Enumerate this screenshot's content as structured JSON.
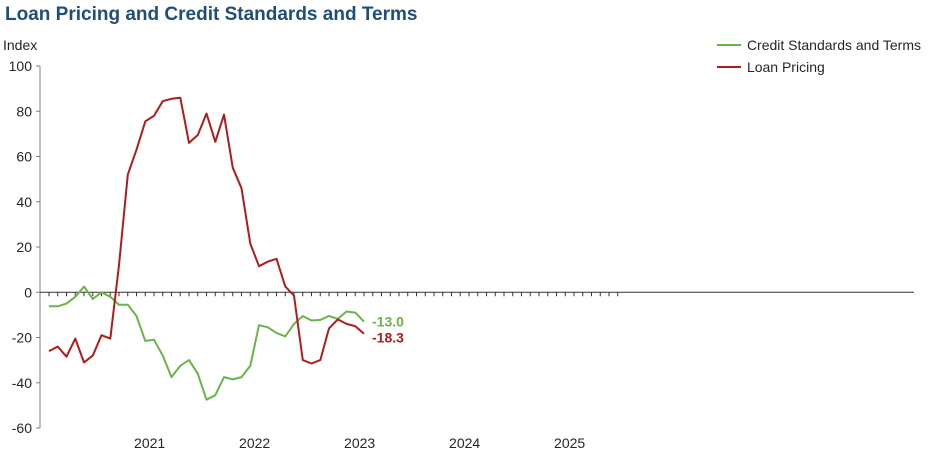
{
  "title": "Loan Pricing  and Credit Standards and Terms",
  "chart_data": {
    "type": "line",
    "title": "Loan Pricing  and Credit Standards and Terms",
    "ylabel": "Index",
    "xlabel": "",
    "ylim": [
      -60,
      100
    ],
    "yticks": [
      "100",
      "80",
      "60",
      "40",
      "20",
      "0",
      "-20",
      "-40",
      "-60"
    ],
    "xtick_labels": [
      "2021",
      "2022",
      "2023",
      "2024",
      "2025"
    ],
    "x": [
      "2020-07",
      "2020-08",
      "2020-09",
      "2020-10",
      "2020-11",
      "2020-12",
      "2021-01",
      "2021-02",
      "2021-03",
      "2021-04",
      "2021-05",
      "2021-06",
      "2021-07",
      "2021-08",
      "2021-09",
      "2021-10",
      "2021-11",
      "2021-12",
      "2022-01",
      "2022-02",
      "2022-03",
      "2022-04",
      "2022-05",
      "2022-06",
      "2022-07",
      "2022-08",
      "2022-09",
      "2022-10",
      "2022-11",
      "2022-12",
      "2023-01",
      "2023-02",
      "2023-03",
      "2023-04",
      "2023-05",
      "2023-06",
      "2023-07",
      "2023-08",
      "2023-09",
      "2023-10",
      "2023-11",
      "2023-12",
      "2024-01",
      "2024-02",
      "2024-03",
      "2024-04",
      "2024-05",
      "2024-06",
      "2024-07",
      "2024-08",
      "2024-09",
      "2024-10",
      "2024-11",
      "2024-12",
      "2025-01",
      "2025-02",
      "2025-03",
      "2025-04",
      "2025-05",
      "2025-06",
      "2025-07",
      "2025-08",
      "2025-09",
      "2025-10",
      "2025-11",
      "2025-12"
    ],
    "legend_position": "top-right",
    "grid": false,
    "series": [
      {
        "name": "Credit Standards and Terms",
        "color": "#6ab547",
        "points": [
          [
            "2020-07-01",
            -6.2
          ],
          [
            "2020-08-01",
            -6.2
          ],
          [
            "2020-09-01",
            -5
          ],
          [
            "2020-10-01",
            -2
          ],
          [
            "2020-11-01",
            2.5
          ],
          [
            "2020-12-01",
            -3
          ],
          [
            "2021-01-01",
            0
          ],
          [
            "2021-02-01",
            -2
          ],
          [
            "2021-03-01",
            -5.5
          ],
          [
            "2021-04-01",
            -5.5
          ],
          [
            "2021-05-01",
            -10.5
          ],
          [
            "2021-06-01",
            -21.5
          ],
          [
            "2021-07-01",
            -21
          ],
          [
            "2021-08-01",
            -28
          ],
          [
            "2021-09-01",
            -37.5
          ],
          [
            "2021-10-01",
            -32.5
          ],
          [
            "2021-11-01",
            -30
          ],
          [
            "2021-12-01",
            -36
          ],
          [
            "2022-01-01",
            -47.5
          ],
          [
            "2022-02-01",
            -45.5
          ],
          [
            "2022-03-01",
            -37.5
          ],
          [
            "2022-04-01",
            -38.5
          ],
          [
            "2022-05-01",
            -37.5
          ],
          [
            "2022-06-01",
            -32.5
          ],
          [
            "2022-07-01",
            -14.5
          ],
          [
            "2022-08-01",
            -15.5
          ],
          [
            "2022-09-01",
            -18
          ],
          [
            "2022-10-01",
            -19.5
          ],
          [
            "2022-11-01",
            -14
          ],
          [
            "2022-12-01",
            -10.5
          ],
          [
            "2023-01-01",
            -12.5
          ],
          [
            "2023-02-01",
            -12.2
          ],
          [
            "2023-03-01",
            -10.5
          ],
          [
            "2023-04-01",
            -11.8
          ],
          [
            "2023-05-01",
            -8.5
          ],
          [
            "2023-06-01",
            -9
          ],
          [
            "2023-07-01",
            -13
          ]
        ],
        "end_label": "-13.0"
      },
      {
        "name": "Loan Pricing",
        "color": "#b01c1c",
        "points": [
          [
            "2020-07-01",
            -26
          ],
          [
            "2020-08-01",
            -24
          ],
          [
            "2020-09-01",
            -28.5
          ],
          [
            "2020-10-01",
            -20.5
          ],
          [
            "2020-11-01",
            -31
          ],
          [
            "2020-12-01",
            -28
          ],
          [
            "2021-01-01",
            -19
          ],
          [
            "2021-02-01",
            -20.5
          ],
          [
            "2021-03-01",
            12
          ],
          [
            "2021-04-01",
            52
          ],
          [
            "2021-05-01",
            63
          ],
          [
            "2021-06-01",
            75.5
          ],
          [
            "2021-07-01",
            78
          ],
          [
            "2021-08-01",
            84.5
          ],
          [
            "2021-09-01",
            85.5
          ],
          [
            "2021-10-01",
            86
          ],
          [
            "2021-11-01",
            66
          ],
          [
            "2021-12-01",
            69.5
          ],
          [
            "2022-01-01",
            79
          ],
          [
            "2022-02-01",
            66.5
          ],
          [
            "2022-03-01",
            78.5
          ],
          [
            "2022-04-01",
            55
          ],
          [
            "2022-05-01",
            46
          ],
          [
            "2022-06-01",
            21.5
          ],
          [
            "2022-07-01",
            11.5
          ],
          [
            "2022-08-01",
            13.5
          ],
          [
            "2022-09-01",
            14.8
          ],
          [
            "2022-10-01",
            2.5
          ],
          [
            "2022-11-01",
            -1.5
          ],
          [
            "2022-12-01",
            -30
          ],
          [
            "2023-01-01",
            -31.5
          ],
          [
            "2023-02-01",
            -30
          ],
          [
            "2023-03-01",
            -16
          ],
          [
            "2023-04-01",
            -12
          ],
          [
            "2023-05-01",
            -14
          ],
          [
            "2023-06-01",
            -15
          ],
          [
            "2023-07-01",
            -18.3
          ]
        ],
        "end_label": "-18.3"
      }
    ]
  }
}
